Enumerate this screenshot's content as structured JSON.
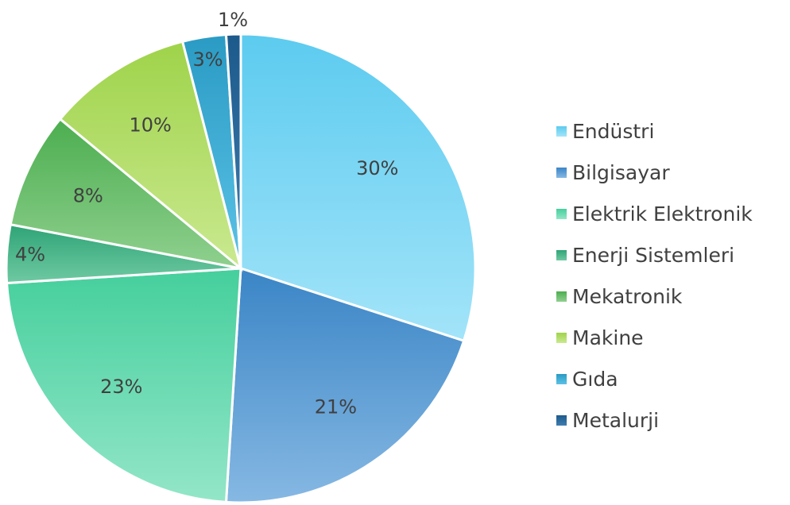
{
  "chart_data": {
    "type": "pie",
    "legend_position": "right",
    "slices": [
      {
        "label": "Endüstri",
        "value": 30,
        "value_label": "30%",
        "color": "#5ccbef",
        "color_light": "#a3e4f9"
      },
      {
        "label": "Bilgisayar",
        "value": 21,
        "value_label": "21%",
        "color": "#3a85c6",
        "color_light": "#86b8e3"
      },
      {
        "label": "Elektrik Elektronik",
        "value": 23,
        "value_label": "23%",
        "color": "#45cf9d",
        "color_light": "#93e6c8"
      },
      {
        "label": "Enerji Sistemleri",
        "value": 4,
        "value_label": "4%",
        "color": "#2ea476",
        "color_light": "#6fc9a2"
      },
      {
        "label": "Mekatronik",
        "value": 8,
        "value_label": "8%",
        "color": "#4cae4f",
        "color_light": "#8fd08f"
      },
      {
        "label": "Makine",
        "value": 10,
        "value_label": "10%",
        "color": "#9fd34a",
        "color_light": "#cae990"
      },
      {
        "label": "Gıda",
        "value": 3,
        "value_label": "3%",
        "color": "#2a9bc4",
        "color_light": "#5cc2e6"
      },
      {
        "label": "Metalurji",
        "value": 1,
        "value_label": "1%",
        "color": "#1d5a8c",
        "color_light": "#3f7db0"
      }
    ]
  }
}
